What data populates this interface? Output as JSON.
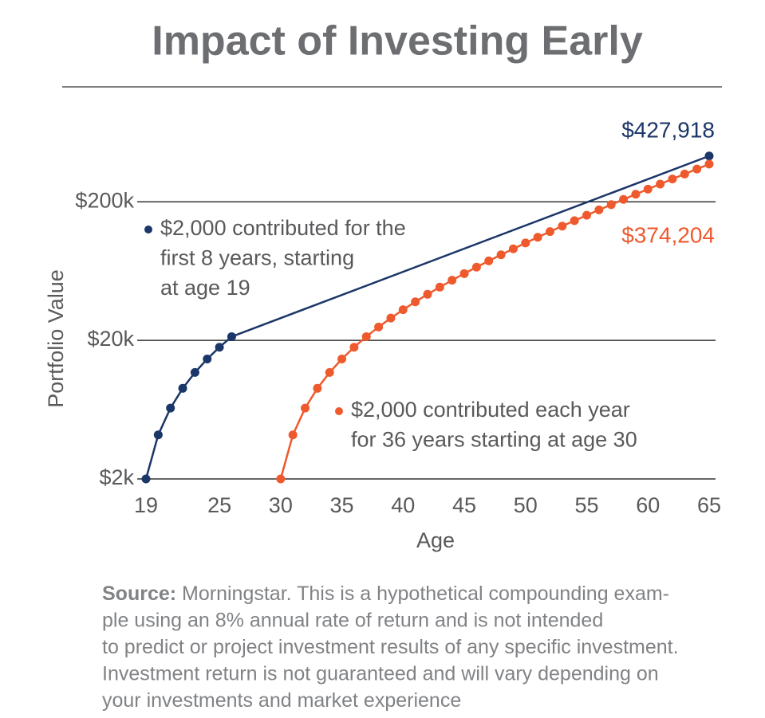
{
  "chart_data": {
    "type": "line",
    "title": "Impact of Investing Early",
    "xlabel": "Age",
    "ylabel": "Portfolio Value",
    "log_y": true,
    "grid": true,
    "xlim": [
      19,
      65
    ],
    "xticks": [
      19,
      25,
      30,
      35,
      40,
      45,
      50,
      55,
      60,
      65
    ],
    "ylim": [
      2000,
      500000
    ],
    "yticks": [
      {
        "value": 2000,
        "label": "$2k"
      },
      {
        "value": 20000,
        "label": "$20k"
      },
      {
        "value": 200000,
        "label": "$200k"
      }
    ],
    "series": [
      {
        "name": [
          "$2,000 contributed for the",
          "first 8 years, starting",
          "at age 19"
        ],
        "color": "#1b3668",
        "x": [
          19,
          20,
          21,
          22,
          23,
          24,
          25,
          26,
          65
        ],
        "values": [
          2000,
          4160,
          6493,
          9012,
          11733,
          14672,
          17846,
          21273,
          427918
        ],
        "value_labels": [
          null,
          null,
          null,
          null,
          null,
          null,
          null,
          null,
          "$427,918"
        ]
      },
      {
        "name": [
          "$2,000 contributed each year",
          "for 36 years starting at age 30"
        ],
        "color": "#ee5a2d",
        "x": [
          30,
          31,
          32,
          33,
          34,
          35,
          36,
          37,
          38,
          39,
          40,
          41,
          42,
          43,
          44,
          45,
          46,
          47,
          48,
          49,
          50,
          51,
          52,
          53,
          54,
          55,
          56,
          57,
          58,
          59,
          60,
          61,
          62,
          63,
          64,
          65
        ],
        "values": [
          2000,
          4160,
          6493,
          9012,
          11733,
          14672,
          17846,
          21273,
          24975,
          28973,
          33291,
          37954,
          42991,
          48430,
          54304,
          60649,
          67500,
          74900,
          82893,
          91524,
          100846,
          110914,
          121787,
          133530,
          146212,
          159909,
          174702,
          190678,
          207932,
          226566,
          246692,
          268427,
          291901,
          317253,
          344634,
          374204
        ],
        "value_labels": [
          null,
          null,
          null,
          null,
          null,
          null,
          null,
          null,
          null,
          null,
          null,
          null,
          null,
          null,
          null,
          null,
          null,
          null,
          null,
          null,
          null,
          null,
          null,
          null,
          null,
          null,
          null,
          null,
          null,
          null,
          null,
          null,
          null,
          null,
          null,
          "$374,204"
        ]
      }
    ],
    "source": {
      "label": "Source:",
      "lines": [
        " Morningstar. This is a hypothetical compounding exam-",
        "ple using an 8% annual rate of return and is not intended",
        "to predict or project investment results of any specific investment.",
        "Investment return is not guaranteed and will vary depending on",
        "your investments and market experience"
      ]
    }
  }
}
